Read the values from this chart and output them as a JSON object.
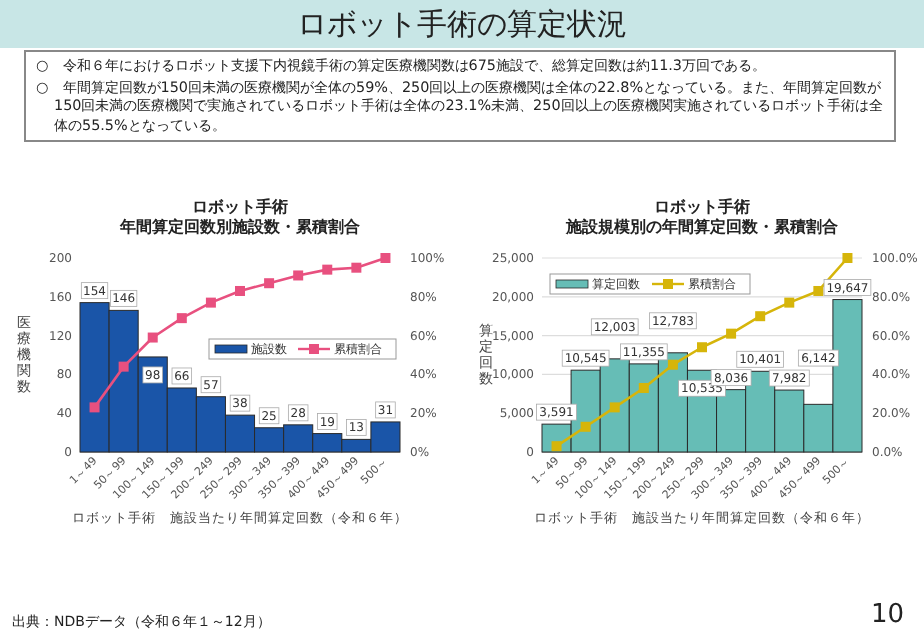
{
  "chart_data": [
    {
      "type": "other",
      "title": "ロボット手術の算定状況",
      "annotations": [
        "○　令和６年におけるロボット支援下内視鏡手術の算定医療機関数は675施設で、総算定回数は約11.3万回である。",
        "○　年間算定回数が150回未満の医療機関が全体の59%、250回以上の医療機関は全体の22.8%となっている。また、年間算定回数が150回未満の医療機関で実施されているロボット手術は全体の23.1%未満、250回以上の医療機関実施されているロボット手術は全体の55.5%となっている。",
        "出典：NDBデータ（令和６年１～12月）",
        "10"
      ]
    },
    {
      "type": "bar",
      "title": "ロボット手術",
      "subtitle": "年間算定回数別施設数・累積割合",
      "xlabel": "ロボット手術　施設当たり年間算定回数（令和６年）",
      "ylabel": "医療機関数",
      "categories": [
        "1～49",
        "50～99",
        "100～149",
        "150～199",
        "200～249",
        "250～299",
        "300～349",
        "350～399",
        "400～449",
        "450～499",
        "500～"
      ],
      "series": [
        {
          "name": "施設数",
          "type": "bar",
          "color": "#1a55a8",
          "values": [
            154,
            146,
            98,
            66,
            57,
            38,
            25,
            28,
            19,
            13,
            31
          ],
          "value_labels": [
            "154",
            "146",
            "98",
            "66",
            "57",
            "38",
            "25",
            "28",
            "19",
            "13",
            "31"
          ]
        },
        {
          "name": "累積割合",
          "type": "line",
          "axis": "y2",
          "color": "#e8507f",
          "values": [
            23,
            44,
            59,
            69,
            77,
            83,
            87,
            91,
            94,
            95,
            100
          ]
        }
      ],
      "ylim": [
        0,
        200
      ],
      "yticks": [
        0,
        40,
        80,
        120,
        160,
        200
      ],
      "y2lim": [
        0,
        100
      ],
      "y2ticks": [
        {
          "value": 0,
          "label": "0%"
        },
        {
          "value": 20,
          "label": "20%"
        },
        {
          "value": 40,
          "label": "40%"
        },
        {
          "value": 60,
          "label": "60%"
        },
        {
          "value": 80,
          "label": "80%"
        },
        {
          "value": 100,
          "label": "100%"
        }
      ],
      "marker": "square",
      "legend": "right"
    },
    {
      "type": "bar",
      "title": "ロボット手術",
      "subtitle": "施設規模別の年間算定回数・累積割合",
      "xlabel": "ロボット手術　施設当たり年間算定回数（令和６年）",
      "ylabel": "算定回数",
      "categories": [
        "1～49",
        "50～99",
        "100～149",
        "150～199",
        "200～249",
        "250～299",
        "300～349",
        "350～399",
        "400～449",
        "450～499",
        "500～"
      ],
      "series": [
        {
          "name": "算定回数",
          "type": "bar",
          "color": "#66bdb6",
          "values": [
            3591,
            10545,
            12003,
            11355,
            12783,
            10535,
            8036,
            10401,
            7982,
            6142,
            19647
          ],
          "value_labels": [
            "3,591",
            "10,545",
            "12,003",
            "11,355",
            "12,783",
            "10,535",
            "8,036",
            "10,401",
            "7,982",
            "6,142",
            "19,647"
          ]
        },
        {
          "name": "累積割合",
          "type": "line",
          "axis": "y2",
          "color": "#d6b50a",
          "values": [
            3,
            13,
            23,
            33,
            45,
            54,
            61,
            70,
            77,
            83,
            100
          ]
        }
      ],
      "ylim": [
        0,
        25000
      ],
      "yticks": [
        {
          "value": 0,
          "label": "0"
        },
        {
          "value": 5000,
          "label": "5,000"
        },
        {
          "value": 10000,
          "label": "10,000"
        },
        {
          "value": 15000,
          "label": "15,000"
        },
        {
          "value": 20000,
          "label": "20,000"
        },
        {
          "value": 25000,
          "label": "25,000"
        }
      ],
      "y2lim": [
        0,
        100
      ],
      "y2ticks": [
        {
          "value": 0,
          "label": "0.0%"
        },
        {
          "value": 20,
          "label": "20.0%"
        },
        {
          "value": 40,
          "label": "40.0%"
        },
        {
          "value": 60,
          "label": "60.0%"
        },
        {
          "value": 80,
          "label": "80.0%"
        },
        {
          "value": 100,
          "label": "100.0%"
        }
      ],
      "marker": "square",
      "legend": "top left",
      "grid": "y"
    }
  ]
}
